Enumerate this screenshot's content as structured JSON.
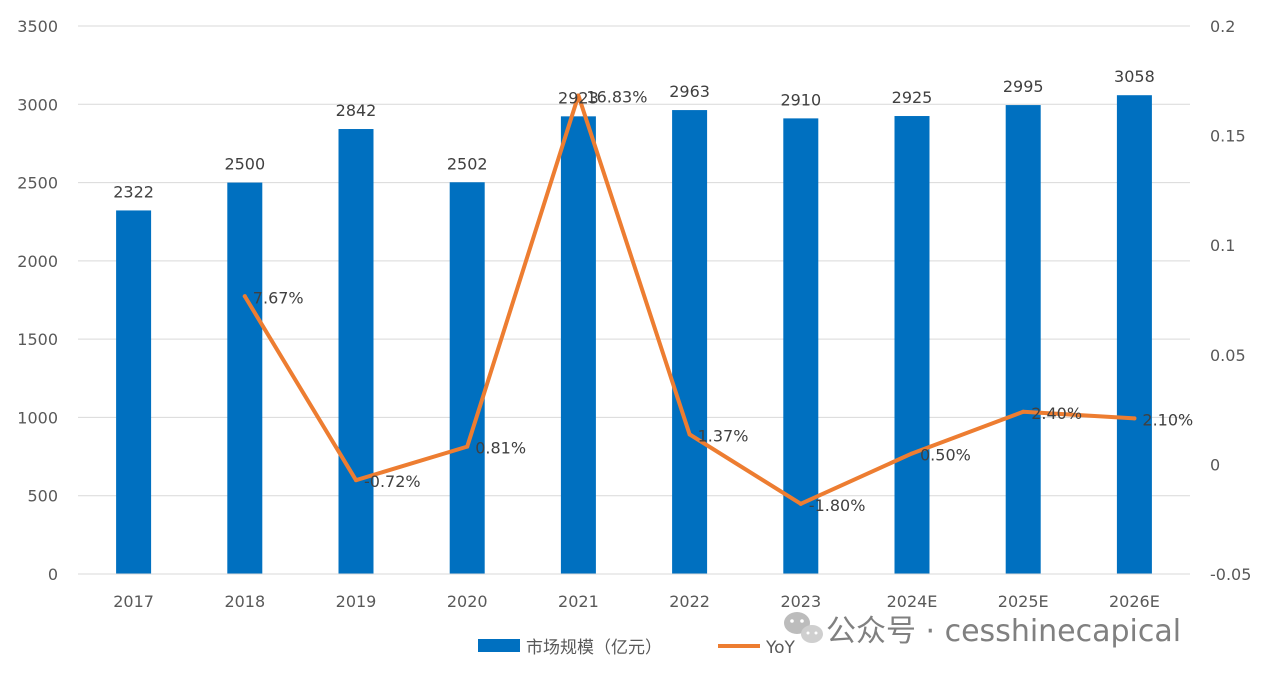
{
  "chart_data": {
    "type": "bar",
    "categories": [
      "2017",
      "2018",
      "2019",
      "2020",
      "2021",
      "2022",
      "2023",
      "2024E",
      "2025E",
      "2026E"
    ],
    "series": [
      {
        "name": "市场规模（亿元）",
        "type": "bar",
        "axis": "left",
        "color": "#0070C0",
        "values": [
          2322,
          2500,
          2842,
          2502,
          2923,
          2963,
          2910,
          2925,
          2995,
          3058
        ],
        "labels": [
          "2322",
          "2500",
          "2842",
          "2502",
          "2923",
          "2963",
          "2910",
          "2925",
          "2995",
          "3058"
        ]
      },
      {
        "name": "YoY",
        "type": "line",
        "axis": "right",
        "color": "#ED7D31",
        "values": [
          null,
          0.0767,
          -0.0072,
          0.0081,
          0.1683,
          0.0137,
          -0.018,
          0.005,
          0.024,
          0.021
        ],
        "labels": [
          null,
          "7.67%",
          "-0.72%",
          "0.81%",
          "16.83%",
          "1.37%",
          "-1.80%",
          "0.50%",
          "2.40%",
          "2.10%"
        ]
      }
    ],
    "y_left": {
      "ylim": [
        0,
        3500
      ],
      "ticks": [
        "0",
        "500",
        "1000",
        "1500",
        "2000",
        "2500",
        "3000",
        "3500"
      ]
    },
    "y_right": {
      "ylim": [
        -0.05,
        0.2
      ],
      "ticks": [
        "-0.05",
        "0",
        "0.05",
        "0.1",
        "0.15",
        "0.2"
      ]
    },
    "grid": true,
    "legend": "bottom-center",
    "title": "",
    "xlabel": "",
    "ylabel": ""
  },
  "watermark": {
    "text": "公众号 · cesshinecapical",
    "icon": "wechat-icon"
  }
}
